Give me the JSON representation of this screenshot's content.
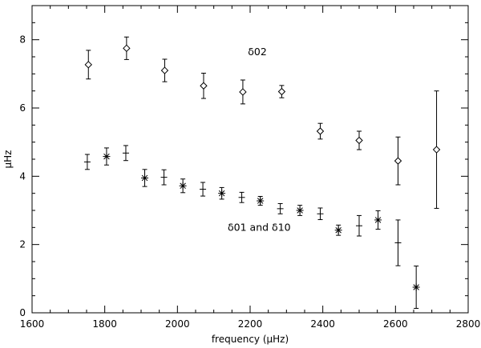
{
  "chart_data": {
    "type": "scatter",
    "title": "",
    "xlabel": "frequency (μHz)",
    "ylabel": "μHz",
    "xlim": [
      1600,
      2800
    ],
    "ylim": [
      0,
      9
    ],
    "x_ticks": [
      1600,
      1800,
      2000,
      2200,
      2400,
      2600,
      2800
    ],
    "y_ticks": [
      0,
      2,
      4,
      6,
      8
    ],
    "x_minor_step": 50,
    "y_minor_step": 0.5,
    "grid": false,
    "annotations": [
      {
        "text": "δ02",
        "x": 2220,
        "y": 7.55
      },
      {
        "text": "δ01 and δ10",
        "x": 2225,
        "y": 2.4
      }
    ],
    "series": [
      {
        "marker": "diamond",
        "points": [
          {
            "x": 1755,
            "y": 7.27,
            "err": 0.42
          },
          {
            "x": 1860,
            "y": 7.75,
            "err": 0.33
          },
          {
            "x": 1965,
            "y": 7.1,
            "err": 0.33
          },
          {
            "x": 2072,
            "y": 6.65,
            "err": 0.37
          },
          {
            "x": 2180,
            "y": 6.47,
            "err": 0.35
          },
          {
            "x": 2287,
            "y": 6.48,
            "err": 0.18
          },
          {
            "x": 2393,
            "y": 5.32,
            "err": 0.23
          },
          {
            "x": 2500,
            "y": 5.05,
            "err": 0.27
          },
          {
            "x": 2607,
            "y": 4.45,
            "err": 0.7
          },
          {
            "x": 2713,
            "y": 4.78,
            "err": 1.72
          }
        ]
      },
      {
        "marker": "plus",
        "points": [
          {
            "x": 1752,
            "y": 4.42,
            "err": 0.22
          },
          {
            "x": 1858,
            "y": 4.68,
            "err": 0.22
          },
          {
            "x": 1963,
            "y": 3.97,
            "err": 0.22
          },
          {
            "x": 2070,
            "y": 3.62,
            "err": 0.2
          },
          {
            "x": 2177,
            "y": 3.38,
            "err": 0.15
          },
          {
            "x": 2283,
            "y": 3.05,
            "err": 0.15
          },
          {
            "x": 2393,
            "y": 2.9,
            "err": 0.17
          },
          {
            "x": 2500,
            "y": 2.55,
            "err": 0.3
          },
          {
            "x": 2607,
            "y": 2.05,
            "err": 0.67
          }
        ]
      },
      {
        "marker": "asterisk",
        "points": [
          {
            "x": 1805,
            "y": 4.58,
            "err": 0.25
          },
          {
            "x": 1910,
            "y": 3.95,
            "err": 0.25
          },
          {
            "x": 2015,
            "y": 3.72,
            "err": 0.2
          },
          {
            "x": 2122,
            "y": 3.5,
            "err": 0.17
          },
          {
            "x": 2228,
            "y": 3.28,
            "err": 0.13
          },
          {
            "x": 2337,
            "y": 3.0,
            "err": 0.15
          },
          {
            "x": 2443,
            "y": 2.42,
            "err": 0.15
          },
          {
            "x": 2552,
            "y": 2.72,
            "err": 0.27
          },
          {
            "x": 2657,
            "y": 0.75,
            "err": 0.62
          }
        ]
      }
    ]
  }
}
